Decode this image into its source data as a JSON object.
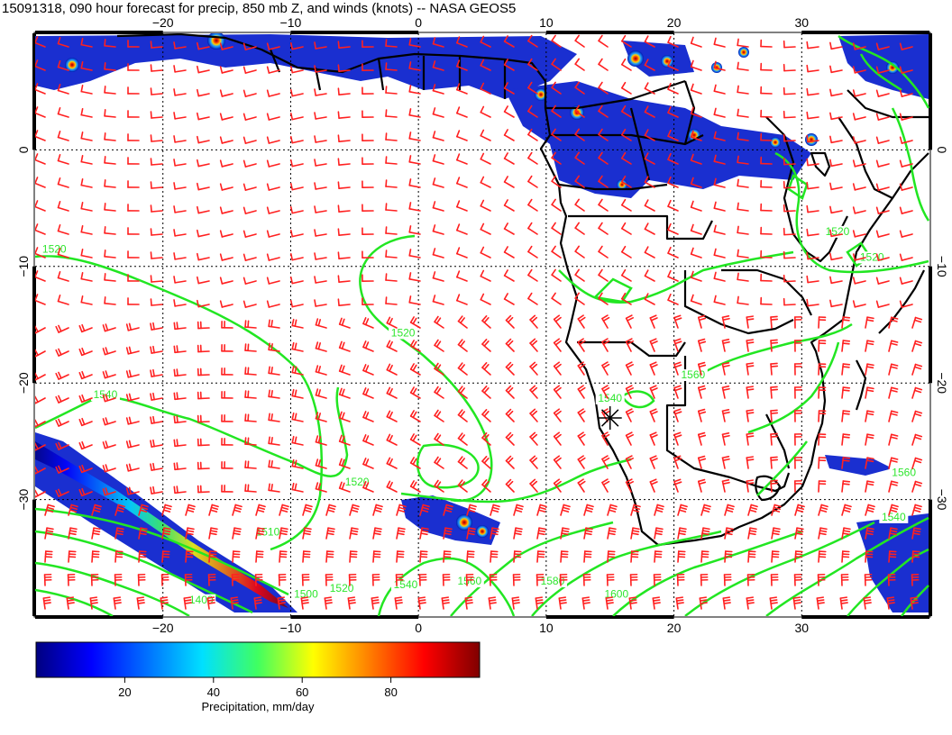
{
  "title": "15091318, 090 hour forecast for precip, 850 mb Z, and winds (knots) -- NASA GEOS5",
  "map": {
    "lon_min": -30,
    "lon_max": 40,
    "lat_min": -40,
    "lat_max": 10,
    "lon_ticks": [
      -20,
      -10,
      0,
      10,
      20,
      30
    ],
    "lat_ticks": [
      0,
      -10,
      -20,
      -30
    ],
    "lon_tick_labels": [
      "−20",
      "−10",
      "0",
      "10",
      "20",
      "30"
    ],
    "lat_tick_labels": [
      "0",
      "−10",
      "−20",
      "−30"
    ],
    "grid": "dotted",
    "colors": {
      "contour": "#22e622",
      "wind_barb": "#ff2020",
      "coast": "#000000"
    }
  },
  "contours": {
    "variable": "850 mb geopotential height",
    "levels": [
      1500,
      1520,
      1540,
      1560,
      1580,
      1600
    ],
    "labels": [
      {
        "text": "1520",
        "lon": -28.5,
        "lat": -8.8
      },
      {
        "text": "1520",
        "lon": -1.2,
        "lat": -16.0
      },
      {
        "text": "1540",
        "lon": -24.5,
        "lat": -21.3
      },
      {
        "text": "1520",
        "lon": -4.8,
        "lat": -28.8
      },
      {
        "text": "1510",
        "lon": -11.8,
        "lat": -33.1
      },
      {
        "text": "1520",
        "lon": -6.0,
        "lat": -37.9
      },
      {
        "text": "1540",
        "lon": -1.0,
        "lat": -37.6
      },
      {
        "text": "1560",
        "lon": 4.0,
        "lat": -37.3
      },
      {
        "text": "1580",
        "lon": 10.5,
        "lat": -37.3
      },
      {
        "text": "1600",
        "lon": 15.5,
        "lat": -38.4
      },
      {
        "text": "1500",
        "lon": -8.8,
        "lat": -38.4
      },
      {
        "text": "1400",
        "lon": -17.0,
        "lat": -38.9
      },
      {
        "text": "1540",
        "lon": 15.0,
        "lat": -21.6
      },
      {
        "text": "1560",
        "lon": 21.5,
        "lat": -19.6
      },
      {
        "text": "1560",
        "lon": 38.0,
        "lat": -28.0
      },
      {
        "text": "1540",
        "lon": 37.2,
        "lat": -31.8
      },
      {
        "text": "1520",
        "lon": 32.8,
        "lat": -7.3
      },
      {
        "text": "1520",
        "lon": 35.5,
        "lat": -9.5
      }
    ]
  },
  "precip_colorbar": {
    "label": "Precipitation, mm/day",
    "min": 0,
    "max": 100,
    "ticks": [
      20,
      40,
      60,
      80
    ],
    "tick_labels": [
      "20",
      "40",
      "60",
      "80"
    ]
  },
  "marker": {
    "symbol": "asterisk",
    "lon": 15,
    "lat": -23
  }
}
